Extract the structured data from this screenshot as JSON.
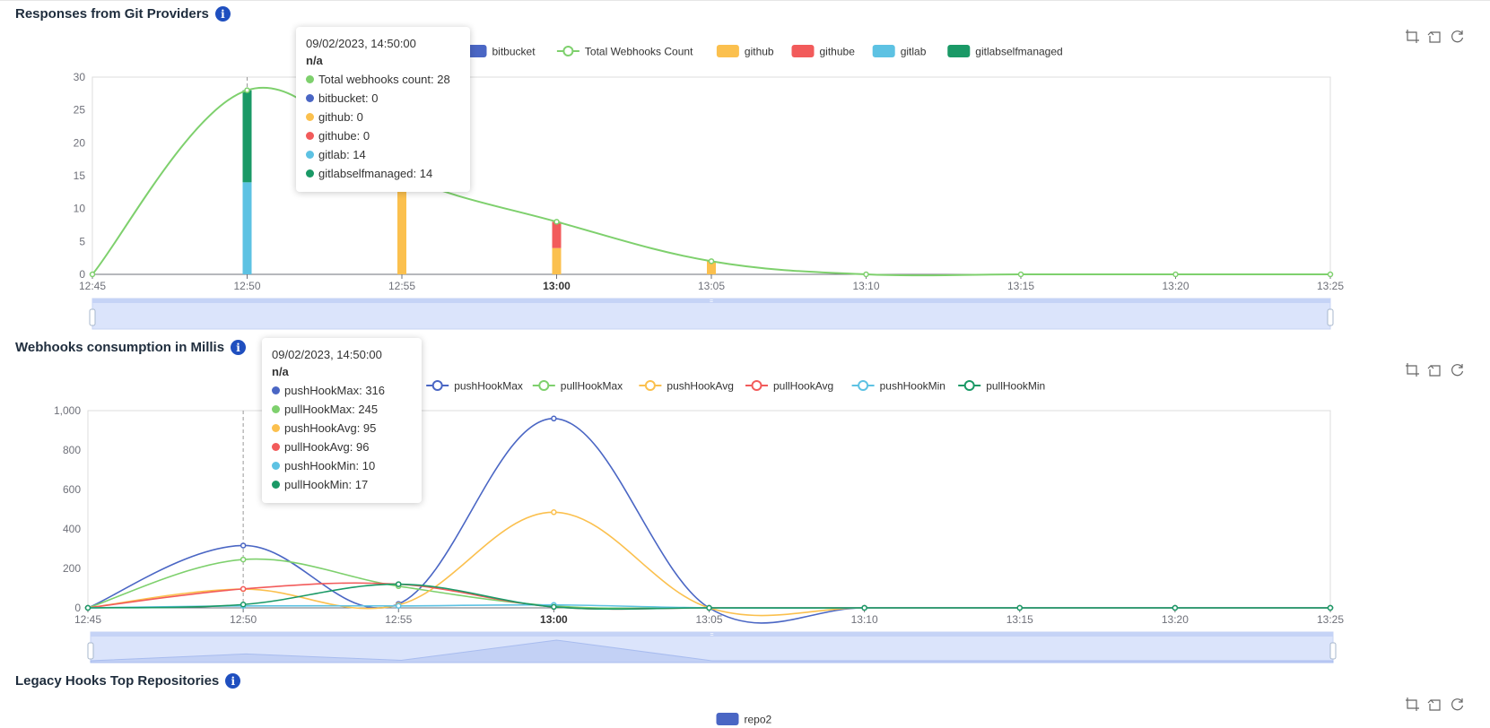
{
  "colors": {
    "blue": "#4a66c4",
    "green": "#7ed06d",
    "yellow": "#fbc04e",
    "red": "#f25b5b",
    "cyan": "#5dc2e3",
    "teal": "#1a9966",
    "brand": "#1f4fbf"
  },
  "icons": [
    "info-icon",
    "zoom-icon",
    "zoom-reset-icon",
    "restore-icon"
  ],
  "charts": [
    {
      "title": "Responses from Git Providers",
      "tooltip": {
        "time": "09/02/2023, 14:50:00",
        "sub": "n/a",
        "rows": [
          {
            "color": "#7ed06d",
            "text": "Total webhooks count: 28"
          },
          {
            "color": "#4a66c4",
            "text": "bitbucket: 0"
          },
          {
            "color": "#fbc04e",
            "text": "github: 0"
          },
          {
            "color": "#f25b5b",
            "text": "githube: 0"
          },
          {
            "color": "#5dc2e3",
            "text": "gitlab: 14"
          },
          {
            "color": "#1a9966",
            "text": "gitlabselfmanaged: 14"
          }
        ]
      }
    },
    {
      "title": "Webhooks consumption in Millis",
      "tooltip": {
        "time": "09/02/2023, 14:50:00",
        "sub": "n/a",
        "rows": [
          {
            "color": "#4a66c4",
            "text": "pushHookMax: 316"
          },
          {
            "color": "#7ed06d",
            "text": "pullHookMax: 245"
          },
          {
            "color": "#fbc04e",
            "text": "pushHookAvg: 95"
          },
          {
            "color": "#f25b5b",
            "text": "pullHookAvg: 96"
          },
          {
            "color": "#5dc2e3",
            "text": "pushHookMin: 10"
          },
          {
            "color": "#1a9966",
            "text": "pullHookMin: 17"
          }
        ]
      }
    },
    {
      "title": "Legacy Hooks Top Repositories"
    }
  ],
  "chart_data": [
    {
      "type": "bar",
      "stacked": true,
      "x": [
        "12:45",
        "12:50",
        "12:55",
        "13:00",
        "13:05",
        "13:10",
        "13:15",
        "13:20",
        "13:25"
      ],
      "bold_ticks": [
        "13:00"
      ],
      "ylim": [
        0,
        30
      ],
      "yticks": [
        0,
        5,
        10,
        15,
        20,
        25,
        30
      ],
      "grid": false,
      "legend_position": "top",
      "highlight_x": "12:50",
      "series": [
        {
          "name": "bitbucket",
          "type": "bar",
          "color": "#4a66c4",
          "values": [
            0,
            0,
            0,
            0,
            0,
            0,
            0,
            0,
            0
          ]
        },
        {
          "name": "Total Webhooks Count",
          "type": "line",
          "color": "#7ed06d",
          "values": [
            0,
            28,
            15,
            8,
            2,
            0,
            0,
            0,
            0
          ]
        },
        {
          "name": "github",
          "type": "bar",
          "color": "#fbc04e",
          "values": [
            0,
            0,
            15,
            4,
            2,
            0,
            0,
            0,
            0
          ]
        },
        {
          "name": "githube",
          "type": "bar",
          "color": "#f25b5b",
          "values": [
            0,
            0,
            0,
            4,
            0,
            0,
            0,
            0,
            0
          ]
        },
        {
          "name": "gitlab",
          "type": "bar",
          "color": "#5dc2e3",
          "values": [
            0,
            14,
            0,
            0,
            0,
            0,
            0,
            0,
            0
          ]
        },
        {
          "name": "gitlabselfmanaged",
          "type": "bar",
          "color": "#1a9966",
          "values": [
            0,
            14,
            0,
            0,
            0,
            0,
            0,
            0,
            0
          ]
        }
      ]
    },
    {
      "type": "line",
      "x": [
        "12:45",
        "12:50",
        "12:55",
        "13:00",
        "13:05",
        "13:10",
        "13:15",
        "13:20",
        "13:25"
      ],
      "bold_ticks": [
        "13:00"
      ],
      "ylim": [
        0,
        1000
      ],
      "yticks": [
        0,
        200,
        400,
        600,
        800,
        1000
      ],
      "ytick_labels": [
        "0",
        "200",
        "400",
        "600",
        "800",
        "1,000"
      ],
      "grid": false,
      "legend_position": "top",
      "highlight_x": "12:50",
      "series": [
        {
          "name": "pushHookMax",
          "color": "#4a66c4",
          "values": [
            0,
            316,
            20,
            960,
            0,
            0,
            0,
            0,
            0
          ]
        },
        {
          "name": "pullHookMax",
          "color": "#7ed06d",
          "values": [
            0,
            245,
            110,
            10,
            0,
            0,
            0,
            0,
            0
          ]
        },
        {
          "name": "pushHookAvg",
          "color": "#fbc04e",
          "values": [
            0,
            95,
            15,
            485,
            0,
            0,
            0,
            0,
            0
          ]
        },
        {
          "name": "pullHookAvg",
          "color": "#f25b5b",
          "values": [
            0,
            96,
            120,
            5,
            0,
            0,
            0,
            0,
            0
          ]
        },
        {
          "name": "pushHookMin",
          "color": "#5dc2e3",
          "values": [
            0,
            10,
            10,
            15,
            0,
            0,
            0,
            0,
            0
          ]
        },
        {
          "name": "pullHookMin",
          "color": "#1a9966",
          "values": [
            0,
            17,
            120,
            5,
            0,
            0,
            0,
            0,
            0
          ]
        }
      ],
      "zoom_preview": [
        0,
        316,
        20,
        960,
        0,
        0,
        0,
        0,
        0
      ]
    },
    {
      "type": "bar",
      "legend_position": "top",
      "series": [
        {
          "name": "repo2",
          "color": "#4a66c4"
        }
      ]
    }
  ]
}
